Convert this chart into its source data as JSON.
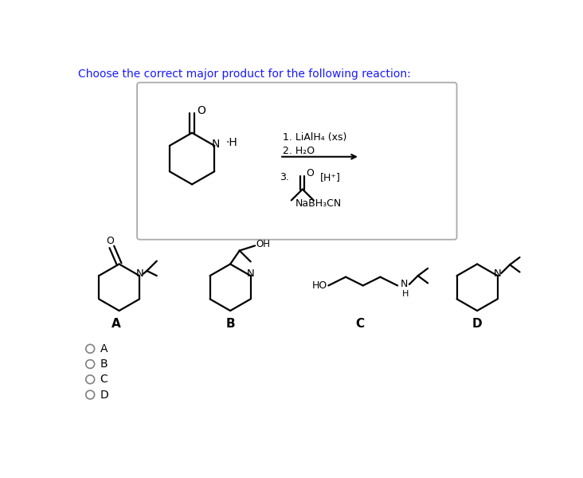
{
  "title": "Choose the correct major product for the following reaction:",
  "title_color": "#1a1aff",
  "title_fontsize": 10.5,
  "background_color": "#ffffff",
  "box_color": "#aaaaaa",
  "text_color": "#000000",
  "line_color": "#000000",
  "line_width": 1.6,
  "reagent_line1": "1. LiAlH₄ (xs)",
  "reagent_line2": "2. H₂O",
  "reagent_line3_num": "3.",
  "reagent_h_plus": "[H⁺]",
  "reagent_nabh": "NaBH₃CN",
  "answer_labels": [
    "A",
    "B",
    "C",
    "D"
  ],
  "radio_labels": [
    "A",
    "B",
    "C",
    "D"
  ]
}
